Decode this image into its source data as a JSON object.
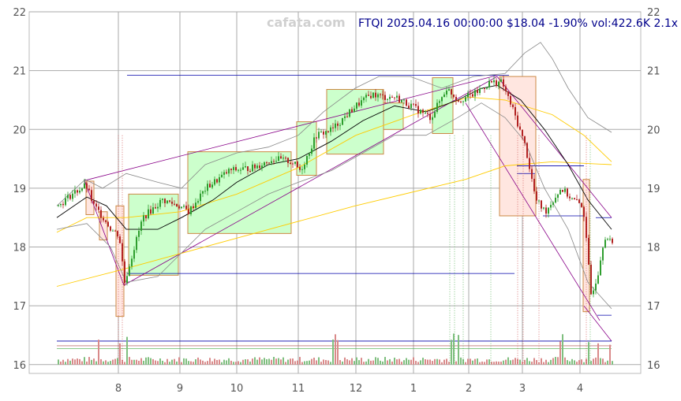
{
  "header": {
    "watermark": "cafata.com",
    "ticker_line": "FTQI 2025.04.16 00:00:00 $18.04 -1.90% vol:422.6K 2.1x"
  },
  "colors": {
    "up": "#2e9e2e",
    "down": "#b22222",
    "vol_up": "#7fbf7f",
    "vol_down": "#d98a8a",
    "box_fill": "#ccffcc",
    "box_edge": "#cc8844",
    "red_box_fill": "#ffe6e0",
    "ma_short": "#000000",
    "ma_long": "#ffcc00",
    "band": "#888888",
    "trend": "#880088",
    "level": "#0000aa"
  },
  "chart_data": {
    "type": "candlestick",
    "title": "",
    "ylim": [
      15.85,
      22.0
    ],
    "y_ticks": [
      16,
      17,
      18,
      19,
      20,
      21,
      22
    ],
    "x_tick_labels": [
      "8",
      "9",
      "10",
      "11",
      "12",
      "1",
      "2",
      "3",
      "4"
    ],
    "grid": true,
    "last_close": 18.04,
    "change_pct": -1.9,
    "volume": "422.6K",
    "volume_ratio": "2.1x",
    "date": "2025.04.16"
  }
}
